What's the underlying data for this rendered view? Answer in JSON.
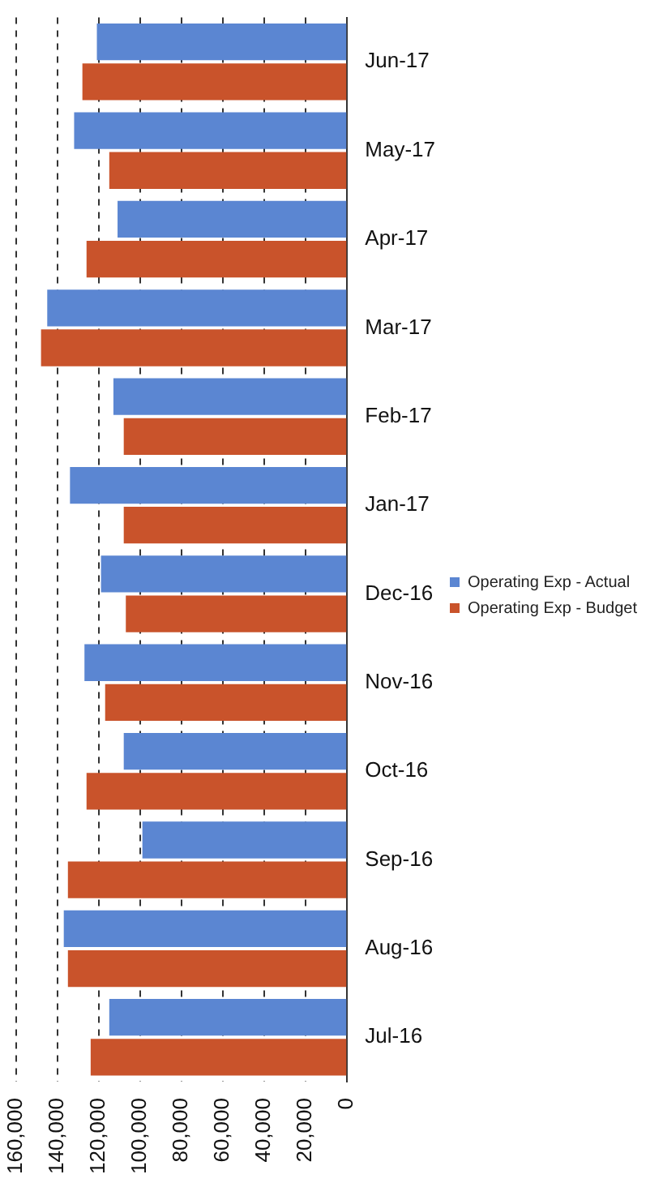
{
  "chart_data": {
    "type": "bar",
    "orientation": "horizontal",
    "categories": [
      "Jun-17",
      "May-17",
      "Apr-17",
      "Mar-17",
      "Feb-17",
      "Jan-17",
      "Dec-16",
      "Nov-16",
      "Oct-16",
      "Sep-16",
      "Aug-16",
      "Jul-16"
    ],
    "series": [
      {
        "name": "Operating Exp - Actual",
        "color": "#5b86d2",
        "values": [
          121000,
          132000,
          111000,
          145000,
          113000,
          134000,
          119000,
          127000,
          108000,
          99000,
          137000,
          115000
        ]
      },
      {
        "name": "Operating Exp - Budget",
        "color": "#c9532b",
        "values": [
          128000,
          115000,
          126000,
          148000,
          108000,
          108000,
          107000,
          117000,
          126000,
          135000,
          135000,
          124000
        ]
      }
    ],
    "xlim": [
      160000,
      0
    ],
    "xticks": [
      {
        "value": 160000,
        "label": "160,000"
      },
      {
        "value": 140000,
        "label": "140,000"
      },
      {
        "value": 120000,
        "label": "120,000"
      },
      {
        "value": 100000,
        "label": "100,000"
      },
      {
        "value": 80000,
        "label": "80,000"
      },
      {
        "value": 60000,
        "label": "60,000"
      },
      {
        "value": 40000,
        "label": "40,000"
      },
      {
        "value": 20000,
        "label": "20,000"
      },
      {
        "value": 0,
        "label": "0"
      }
    ],
    "grid": "x",
    "legend": "right"
  }
}
